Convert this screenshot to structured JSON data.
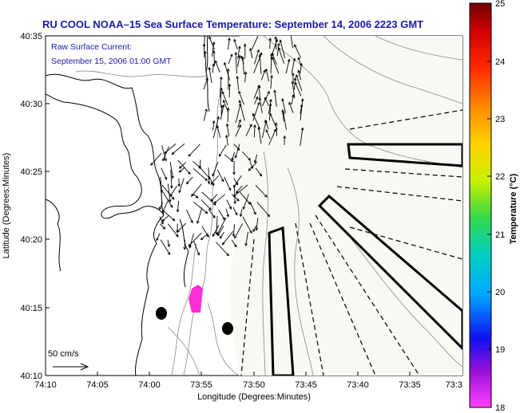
{
  "title": "RU COOL  NOAA–15  Sea Surface Temperature:  September 14, 2006 2223 GMT",
  "current_note": {
    "line1": "Raw Surface Current:",
    "line2": "September 15, 2006 01:00 GMT"
  },
  "scale_label": "50 cm/s",
  "x_axis": {
    "label": "Longitude (Degrees:Minutes)",
    "ticks": [
      "74:10",
      "74:05",
      "74:00",
      "73:55",
      "73:50",
      "73:45",
      "73:40",
      "73:35",
      "73:3"
    ]
  },
  "y_axis": {
    "label": "Latitude (Degrees:Minutes)",
    "ticks": [
      "40:35",
      "40:30",
      "40:25",
      "40:20",
      "40:15",
      "40:10"
    ]
  },
  "colorbar": {
    "label": "Temperature (°C)",
    "ticks": [
      "25",
      "24",
      "23",
      "22",
      "21",
      "20",
      "19",
      "18"
    ],
    "min": 18,
    "max": 25
  },
  "colors": {
    "title": "#1a1aa6",
    "land": "#ffffff",
    "coastline": "#000000",
    "bathymetry": "#808080",
    "sst_patch": "#ff2fd5"
  }
}
